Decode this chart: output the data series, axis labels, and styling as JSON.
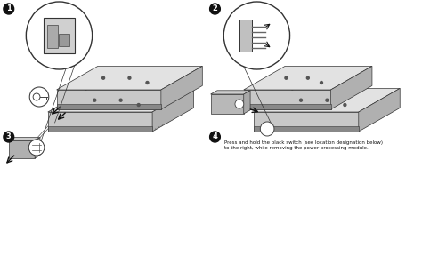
{
  "background_color": "#ffffff",
  "step4_text_line1": "Press and hold the black switch (see location designation below)",
  "step4_text_line2": "to the right, while removing the power processing module.",
  "fig_width": 4.74,
  "fig_height": 2.88,
  "dpi": 100,
  "ups_face_color": "#c8c8c8",
  "ups_top_color": "#e2e2e2",
  "ups_side_color": "#b0b0b0",
  "ups_edge_color": "#333333",
  "panel_face_color": "#b8b8b8",
  "panel_top_color": "#d0d0d0",
  "panel_side_color": "#a0a0a0"
}
